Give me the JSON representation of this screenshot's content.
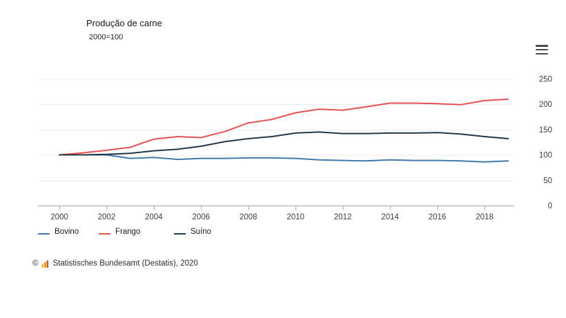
{
  "header": {
    "title": "Produção de carne",
    "subtitle": "2000=100"
  },
  "chart_data": {
    "type": "line",
    "title": "Produção de carne",
    "subtitle": "2000=100",
    "x": [
      2000,
      2001,
      2002,
      2003,
      2004,
      2005,
      2006,
      2007,
      2008,
      2009,
      2010,
      2011,
      2012,
      2013,
      2014,
      2015,
      2016,
      2017,
      2018,
      2019
    ],
    "xticks": [
      2000,
      2002,
      2004,
      2006,
      2008,
      2010,
      2012,
      2014,
      2016,
      2018
    ],
    "yticks": [
      0,
      50,
      100,
      150,
      200,
      250
    ],
    "ylim": [
      0,
      250
    ],
    "y_axis_side": "right",
    "grid": "horizontal",
    "legend_position": "bottom-left",
    "series": [
      {
        "name": "Bovino",
        "color": "#4179ab",
        "values": [
          100,
          100,
          100,
          93,
          95,
          91,
          93,
          93,
          94,
          94,
          93,
          90,
          89,
          88,
          90,
          89,
          89,
          88,
          86,
          88
        ]
      },
      {
        "name": "Frango",
        "color": "#e45150",
        "values": [
          100,
          104,
          109,
          115,
          131,
          136,
          134,
          146,
          163,
          170,
          183,
          190,
          188,
          195,
          202,
          202,
          201,
          199,
          207,
          210
        ]
      },
      {
        "name": "Suíno",
        "color": "#233748",
        "values": [
          100,
          100,
          101,
          103,
          108,
          111,
          117,
          126,
          132,
          136,
          143,
          145,
          142,
          142,
          143,
          143,
          144,
          141,
          136,
          132
        ]
      }
    ],
    "axis_color": "#a3a3a3",
    "gridline_color": "#ebebeb",
    "tick_label_color": "#3d3d3d"
  },
  "footer": {
    "copyright": "©",
    "text": "Statistisches Bundesamt (Destatis), 2020"
  }
}
